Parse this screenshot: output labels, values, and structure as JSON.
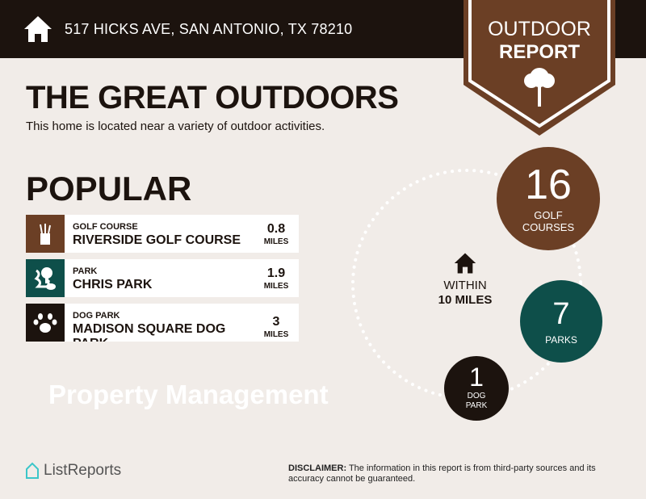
{
  "header": {
    "address": "517 HICKS AVE, SAN ANTONIO, TX 78210",
    "icon": "home-icon"
  },
  "badge": {
    "line1": "OUTDOOR",
    "line2": "REPORT",
    "icon": "tree-icon"
  },
  "title": "THE GREAT OUTDOORS",
  "subtitle": "This home is located near a variety of outdoor activities.",
  "popular_heading": "POPULAR",
  "watermark": "Property Management",
  "popular": [
    {
      "category": "GOLF COURSE",
      "name": "RIVERSIDE GOLF COURSE",
      "distance": "0.8",
      "unit": "MILES",
      "icon": "golf-bag-icon",
      "color": "#6b3f25"
    },
    {
      "category": "PARK",
      "name": "CHRIS PARK",
      "distance": "1.9",
      "unit": "MILES",
      "icon": "park-tree-icon",
      "color": "#0e4f4a"
    },
    {
      "category": "DOG PARK",
      "name": "MADISON SQUARE DOG PARK",
      "distance": "3",
      "unit": "MILES",
      "icon": "paw-icon",
      "color": "#1c130e"
    }
  ],
  "within": {
    "line1": "WITHIN",
    "line2": "10 MILES"
  },
  "counts": [
    {
      "count": "16",
      "label": "GOLF COURSES",
      "color": "#6b3f25"
    },
    {
      "count": "7",
      "label": "PARKS",
      "color": "#0e4f4a"
    },
    {
      "count": "1",
      "label": "DOG PARK",
      "color": "#1c130e"
    }
  ],
  "footer": {
    "logo": "ListReports",
    "disclaimer_label": "DISCLAIMER:",
    "disclaimer": " The information in this report is from third-party sources and its accuracy cannot be guaranteed."
  },
  "colors": {
    "brown": "#6b3f25",
    "teal": "#0e4f4a",
    "dark": "#1c130e",
    "background": "#f1ece8"
  }
}
